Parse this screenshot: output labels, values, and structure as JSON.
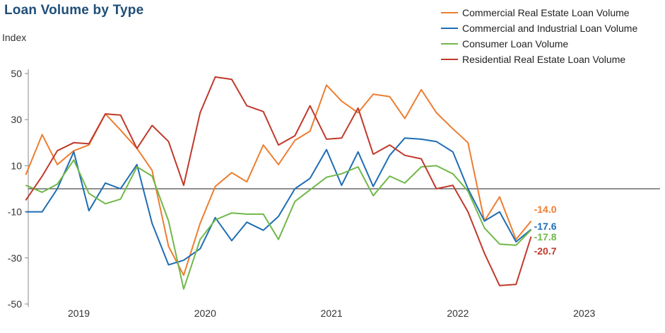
{
  "chart_data": {
    "type": "line",
    "title": "Loan Volume by Type",
    "ylabel": "Index",
    "ylim": [
      -50,
      50
    ],
    "yticks": [
      50,
      30,
      10,
      -10,
      -30,
      -50
    ],
    "xlim": [
      2018.6,
      2023.6
    ],
    "xticks": [
      {
        "label": "2019",
        "value": 2019.0
      },
      {
        "label": "2020",
        "value": 2020.0
      },
      {
        "label": "2021",
        "value": 2021.0
      },
      {
        "label": "2022",
        "value": 2022.0
      },
      {
        "label": "2023",
        "value": 2023.0
      }
    ],
    "series": [
      {
        "name": "Commercial Real Estate Loan Volume",
        "color": "#ed7d31",
        "end_label": "-14.0",
        "points": [
          [
            2018.58,
            6
          ],
          [
            2018.71,
            23.5
          ],
          [
            2018.83,
            10.5
          ],
          [
            2018.96,
            16.5
          ],
          [
            2019.08,
            19
          ],
          [
            2019.21,
            32.5
          ],
          [
            2019.33,
            25.5
          ],
          [
            2019.46,
            17.5
          ],
          [
            2019.58,
            8
          ],
          [
            2019.71,
            -25
          ],
          [
            2019.83,
            -37.5
          ],
          [
            2019.96,
            -15
          ],
          [
            2020.08,
            1
          ],
          [
            2020.21,
            7
          ],
          [
            2020.33,
            3
          ],
          [
            2020.46,
            19
          ],
          [
            2020.58,
            10.5
          ],
          [
            2020.71,
            21
          ],
          [
            2020.83,
            25
          ],
          [
            2020.96,
            45
          ],
          [
            2021.08,
            38
          ],
          [
            2021.21,
            33
          ],
          [
            2021.33,
            41
          ],
          [
            2021.46,
            40
          ],
          [
            2021.58,
            30.5
          ],
          [
            2021.71,
            43
          ],
          [
            2021.83,
            33
          ],
          [
            2021.96,
            26
          ],
          [
            2022.08,
            20
          ],
          [
            2022.21,
            -14
          ],
          [
            2022.33,
            -3.5
          ],
          [
            2022.46,
            -22
          ],
          [
            2022.58,
            -14
          ]
        ]
      },
      {
        "name": "Commercial and Industrial Loan Volume",
        "color": "#1f6db4",
        "end_label": "-17.6",
        "points": [
          [
            2018.58,
            -10
          ],
          [
            2018.71,
            -10
          ],
          [
            2018.83,
            0
          ],
          [
            2018.96,
            16
          ],
          [
            2019.08,
            -9.5
          ],
          [
            2019.21,
            2.5
          ],
          [
            2019.33,
            0
          ],
          [
            2019.46,
            10.5
          ],
          [
            2019.58,
            -15
          ],
          [
            2019.71,
            -33
          ],
          [
            2019.83,
            -31
          ],
          [
            2019.96,
            -26
          ],
          [
            2020.08,
            -12.5
          ],
          [
            2020.21,
            -22.5
          ],
          [
            2020.33,
            -14.5
          ],
          [
            2020.46,
            -18
          ],
          [
            2020.58,
            -12
          ],
          [
            2020.71,
            0
          ],
          [
            2020.83,
            4.5
          ],
          [
            2020.96,
            17
          ],
          [
            2021.08,
            1.5
          ],
          [
            2021.21,
            16
          ],
          [
            2021.33,
            1
          ],
          [
            2021.46,
            14.5
          ],
          [
            2021.58,
            22
          ],
          [
            2021.71,
            21.5
          ],
          [
            2021.83,
            20.5
          ],
          [
            2021.96,
            16
          ],
          [
            2022.08,
            0
          ],
          [
            2022.21,
            -14
          ],
          [
            2022.33,
            -10
          ],
          [
            2022.46,
            -23
          ],
          [
            2022.58,
            -17.6
          ]
        ]
      },
      {
        "name": "Consumer Loan Volume",
        "color": "#70b84a",
        "end_label": "-17.8",
        "points": [
          [
            2018.58,
            1.5
          ],
          [
            2018.71,
            -1.5
          ],
          [
            2018.83,
            2
          ],
          [
            2018.96,
            12.5
          ],
          [
            2019.08,
            -2
          ],
          [
            2019.21,
            -6.5
          ],
          [
            2019.33,
            -4.5
          ],
          [
            2019.46,
            9.5
          ],
          [
            2019.58,
            5.5
          ],
          [
            2019.71,
            -14
          ],
          [
            2019.83,
            -43.5
          ],
          [
            2019.96,
            -22
          ],
          [
            2020.08,
            -13.5
          ],
          [
            2020.21,
            -10.5
          ],
          [
            2020.33,
            -11
          ],
          [
            2020.46,
            -11
          ],
          [
            2020.58,
            -22
          ],
          [
            2020.71,
            -5.5
          ],
          [
            2020.83,
            -0.5
          ],
          [
            2020.96,
            5
          ],
          [
            2021.08,
            6.5
          ],
          [
            2021.21,
            9.5
          ],
          [
            2021.33,
            -3
          ],
          [
            2021.46,
            5.5
          ],
          [
            2021.58,
            2.5
          ],
          [
            2021.71,
            9.5
          ],
          [
            2021.83,
            10
          ],
          [
            2021.96,
            6.5
          ],
          [
            2022.08,
            -1
          ],
          [
            2022.21,
            -17
          ],
          [
            2022.33,
            -24
          ],
          [
            2022.46,
            -24.5
          ],
          [
            2022.58,
            -17.8
          ]
        ]
      },
      {
        "name": "Residential Real Estate Loan Volume",
        "color": "#c0392b",
        "end_label": "-20.7",
        "points": [
          [
            2018.58,
            -5
          ],
          [
            2018.71,
            5.5
          ],
          [
            2018.83,
            16.5
          ],
          [
            2018.96,
            20
          ],
          [
            2019.08,
            19.5
          ],
          [
            2019.21,
            32.5
          ],
          [
            2019.33,
            32
          ],
          [
            2019.46,
            17.5
          ],
          [
            2019.58,
            27.5
          ],
          [
            2019.71,
            20.5
          ],
          [
            2019.83,
            1.5
          ],
          [
            2019.96,
            33
          ],
          [
            2020.08,
            48.5
          ],
          [
            2020.21,
            47.5
          ],
          [
            2020.33,
            36
          ],
          [
            2020.46,
            33.5
          ],
          [
            2020.58,
            19
          ],
          [
            2020.71,
            23
          ],
          [
            2020.83,
            36
          ],
          [
            2020.96,
            21.5
          ],
          [
            2021.08,
            22
          ],
          [
            2021.21,
            35
          ],
          [
            2021.33,
            15
          ],
          [
            2021.46,
            19
          ],
          [
            2021.58,
            14.5
          ],
          [
            2021.71,
            13
          ],
          [
            2021.83,
            0
          ],
          [
            2021.96,
            1.5
          ],
          [
            2022.08,
            -10
          ],
          [
            2022.21,
            -28
          ],
          [
            2022.33,
            -42
          ],
          [
            2022.46,
            -41.5
          ],
          [
            2022.58,
            -20.7
          ]
        ]
      }
    ]
  }
}
